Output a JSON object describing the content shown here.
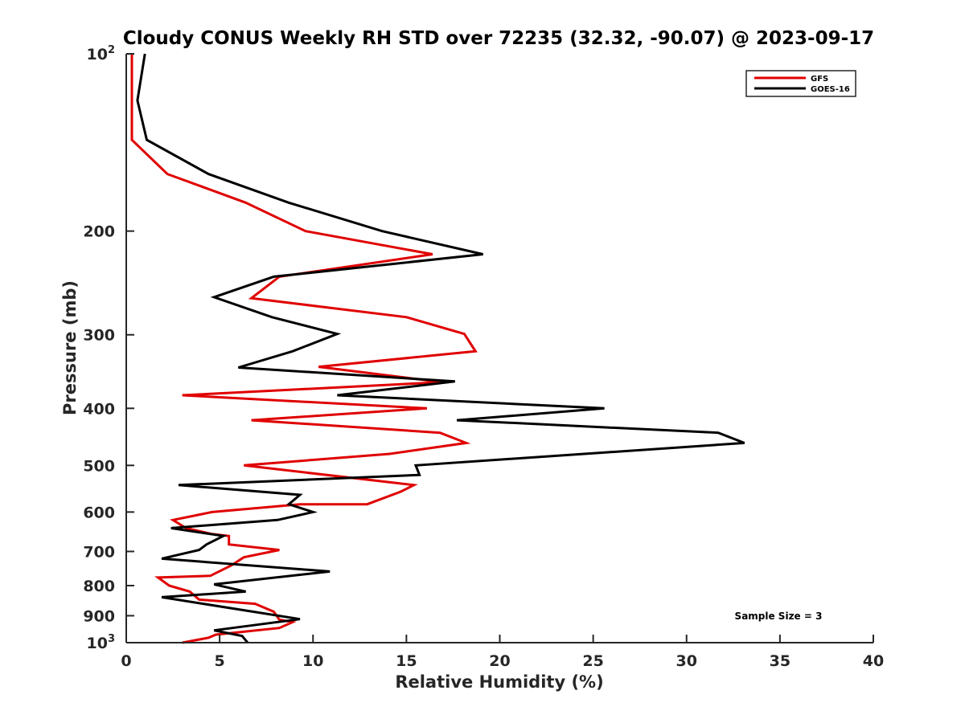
{
  "chart_data": {
    "type": "line",
    "title": "Cloudy CONUS Weekly RH STD over 72235 (32.32, -90.07) @ 2023-09-17",
    "xlabel": "Relative Humidity (%)",
    "ylabel": "Pressure (mb)",
    "xlim": [
      0,
      40
    ],
    "ylim": [
      100,
      1000
    ],
    "yscale": "log",
    "yreversed": true,
    "grid": false,
    "x_ticks": [
      0,
      5,
      10,
      15,
      20,
      25,
      30,
      35,
      40
    ],
    "x_tick_labels": [
      "0",
      "5",
      "10",
      "15",
      "20",
      "25",
      "30",
      "35",
      "40"
    ],
    "y_ticks": [
      100,
      200,
      300,
      400,
      500,
      600,
      700,
      800,
      900,
      1000
    ],
    "y_tick_labels": [
      {
        "base": "10",
        "exp": "2"
      },
      {
        "text": "200"
      },
      {
        "text": "300"
      },
      {
        "text": "400"
      },
      {
        "text": "500"
      },
      {
        "text": "600"
      },
      {
        "text": "700"
      },
      {
        "text": "800"
      },
      {
        "text": "900"
      },
      {
        "base": "10",
        "exp": "3"
      }
    ],
    "legend": {
      "placement": "top-right",
      "entries": [
        "GFS",
        "GOES-16"
      ]
    },
    "annotations": [
      {
        "text": "Sample Size = 3",
        "placement": "bottom-right"
      }
    ],
    "series": [
      {
        "name": "GFS",
        "color": "#e00000",
        "points": [
          {
            "rh": 0.3,
            "p": 100
          },
          {
            "rh": 0.3,
            "p": 140
          },
          {
            "rh": 2.2,
            "p": 160
          },
          {
            "rh": 6.4,
            "p": 179
          },
          {
            "rh": 9.6,
            "p": 200
          },
          {
            "rh": 16.4,
            "p": 219
          },
          {
            "rh": 8.2,
            "p": 239
          },
          {
            "rh": 6.7,
            "p": 260
          },
          {
            "rh": 15.0,
            "p": 280
          },
          {
            "rh": 18.1,
            "p": 299
          },
          {
            "rh": 18.7,
            "p": 320
          },
          {
            "rh": 10.3,
            "p": 340
          },
          {
            "rh": 16.9,
            "p": 361
          },
          {
            "rh": 3.0,
            "p": 380
          },
          {
            "rh": 16.1,
            "p": 400
          },
          {
            "rh": 6.7,
            "p": 419
          },
          {
            "rh": 16.8,
            "p": 440
          },
          {
            "rh": 18.2,
            "p": 458
          },
          {
            "rh": 14.1,
            "p": 478
          },
          {
            "rh": 6.3,
            "p": 500
          },
          {
            "rh": 15.4,
            "p": 540
          },
          {
            "rh": 14.7,
            "p": 554
          },
          {
            "rh": 12.9,
            "p": 582
          },
          {
            "rh": 9.3,
            "p": 582
          },
          {
            "rh": 4.6,
            "p": 600
          },
          {
            "rh": 2.5,
            "p": 619
          },
          {
            "rh": 3.2,
            "p": 639
          },
          {
            "rh": 4.6,
            "p": 654
          },
          {
            "rh": 5.5,
            "p": 659
          },
          {
            "rh": 5.5,
            "p": 681
          },
          {
            "rh": 8.2,
            "p": 696
          },
          {
            "rh": 6.3,
            "p": 716
          },
          {
            "rh": 5.6,
            "p": 740
          },
          {
            "rh": 4.5,
            "p": 770
          },
          {
            "rh": 1.7,
            "p": 775
          },
          {
            "rh": 2.3,
            "p": 800
          },
          {
            "rh": 3.4,
            "p": 819
          },
          {
            "rh": 3.9,
            "p": 845
          },
          {
            "rh": 6.9,
            "p": 859
          },
          {
            "rh": 7.9,
            "p": 886
          },
          {
            "rh": 8.2,
            "p": 914
          },
          {
            "rh": 8.9,
            "p": 923
          },
          {
            "rh": 8.2,
            "p": 944
          },
          {
            "rh": 4.8,
            "p": 969
          },
          {
            "rh": 4.4,
            "p": 981
          },
          {
            "rh": 3.0,
            "p": 1000
          }
        ]
      },
      {
        "name": "GOES-16",
        "color": "#000000",
        "points": [
          {
            "rh": 1.0,
            "p": 100
          },
          {
            "rh": 0.6,
            "p": 120
          },
          {
            "rh": 1.1,
            "p": 140
          },
          {
            "rh": 4.4,
            "p": 160
          },
          {
            "rh": 8.7,
            "p": 179
          },
          {
            "rh": 13.7,
            "p": 200
          },
          {
            "rh": 19.1,
            "p": 219
          },
          {
            "rh": 7.9,
            "p": 239
          },
          {
            "rh": 4.7,
            "p": 259
          },
          {
            "rh": 7.8,
            "p": 280
          },
          {
            "rh": 11.3,
            "p": 299
          },
          {
            "rh": 8.9,
            "p": 320
          },
          {
            "rh": 6.0,
            "p": 341
          },
          {
            "rh": 17.6,
            "p": 360
          },
          {
            "rh": 11.3,
            "p": 380
          },
          {
            "rh": 25.6,
            "p": 400
          },
          {
            "rh": 17.7,
            "p": 419
          },
          {
            "rh": 31.7,
            "p": 440
          },
          {
            "rh": 33.1,
            "p": 458
          },
          {
            "rh": 15.5,
            "p": 500
          },
          {
            "rh": 15.7,
            "p": 519
          },
          {
            "rh": 2.8,
            "p": 540
          },
          {
            "rh": 9.3,
            "p": 561
          },
          {
            "rh": 8.7,
            "p": 582
          },
          {
            "rh": 10.0,
            "p": 600
          },
          {
            "rh": 8.1,
            "p": 619
          },
          {
            "rh": 2.4,
            "p": 639
          },
          {
            "rh": 5.2,
            "p": 659
          },
          {
            "rh": 4.3,
            "p": 681
          },
          {
            "rh": 3.9,
            "p": 696
          },
          {
            "rh": 1.9,
            "p": 720
          },
          {
            "rh": 10.9,
            "p": 757
          },
          {
            "rh": 4.7,
            "p": 796
          },
          {
            "rh": 6.4,
            "p": 819
          },
          {
            "rh": 1.9,
            "p": 837
          },
          {
            "rh": 9.3,
            "p": 912
          },
          {
            "rh": 4.7,
            "p": 953
          },
          {
            "rh": 6.2,
            "p": 974
          },
          {
            "rh": 6.5,
            "p": 1000
          }
        ]
      }
    ]
  }
}
